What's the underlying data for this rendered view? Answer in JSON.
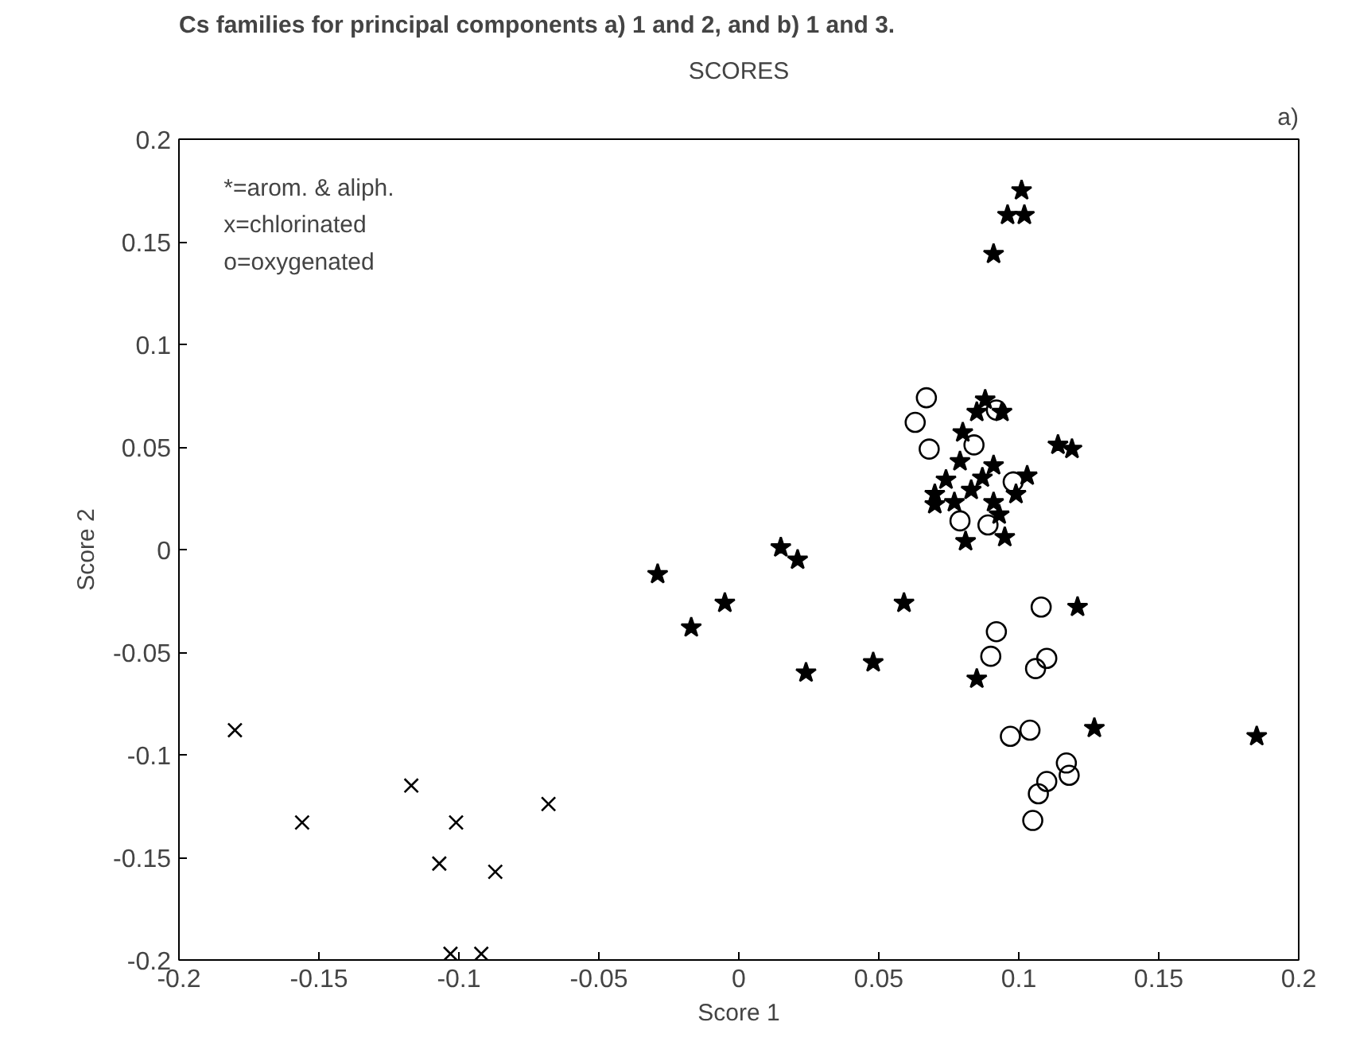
{
  "chart_data": {
    "type": "scatter",
    "title": "SCORES",
    "xlabel": "Score 1",
    "ylabel": "Score 2",
    "annotations": [
      "Cs families for principal components a) 1 and 2, and b) 1 and 3.",
      "a)",
      "*=arom. & aliph.",
      "x=chlorinated",
      "o=oxygenated"
    ],
    "xlim": [
      -0.2,
      0.2
    ],
    "ylim": [
      -0.2,
      0.2
    ],
    "xticks": [
      -0.2,
      -0.15,
      -0.1,
      -0.05,
      0,
      0.05,
      0.1,
      0.15,
      0.2
    ],
    "yticks": [
      -0.2,
      -0.15,
      -0.1,
      -0.05,
      0,
      0.05,
      0.1,
      0.15,
      0.2
    ],
    "grid": false,
    "series": [
      {
        "color": "#000000",
        "marker": "star",
        "x": [
          0.101,
          0.096,
          0.102,
          0.091,
          0.088,
          0.094,
          0.085,
          0.08,
          0.114,
          0.119,
          0.079,
          0.091,
          0.103,
          0.074,
          0.087,
          0.07,
          0.083,
          0.07,
          0.077,
          0.099,
          0.091,
          0.093,
          0.081,
          0.095,
          0.015,
          0.021,
          -0.029,
          -0.005,
          -0.017,
          0.059,
          0.121,
          0.024,
          0.048,
          0.085,
          0.127,
          0.185
        ],
        "values": [
          0.175,
          0.163,
          0.163,
          0.144,
          0.073,
          0.067,
          0.067,
          0.057,
          0.051,
          0.049,
          0.043,
          0.041,
          0.036,
          0.034,
          0.035,
          0.027,
          0.029,
          0.022,
          0.023,
          0.027,
          0.023,
          0.017,
          0.004,
          0.006,
          0.001,
          -0.005,
          -0.012,
          -0.026,
          -0.038,
          -0.026,
          -0.028,
          -0.06,
          -0.055,
          -0.063,
          -0.087,
          -0.091
        ]
      },
      {
        "color": "#000000",
        "marker": "cross",
        "x": [
          -0.18,
          -0.156,
          -0.117,
          -0.101,
          -0.107,
          -0.087,
          -0.068,
          -0.103,
          -0.092
        ],
        "values": [
          -0.088,
          -0.133,
          -0.115,
          -0.133,
          -0.153,
          -0.157,
          -0.124,
          -0.197,
          -0.197
        ]
      },
      {
        "color": "#000000",
        "marker": "circle",
        "x": [
          0.067,
          0.063,
          0.068,
          0.084,
          0.092,
          0.098,
          0.079,
          0.089,
          0.108,
          0.092,
          0.09,
          0.11,
          0.106,
          0.097,
          0.104,
          0.117,
          0.118,
          0.11,
          0.107,
          0.105
        ],
        "values": [
          0.074,
          0.062,
          0.049,
          0.051,
          0.068,
          0.033,
          0.014,
          0.012,
          -0.028,
          -0.04,
          -0.052,
          -0.053,
          -0.058,
          -0.091,
          -0.088,
          -0.104,
          -0.11,
          -0.113,
          -0.119,
          -0.132
        ]
      }
    ]
  }
}
